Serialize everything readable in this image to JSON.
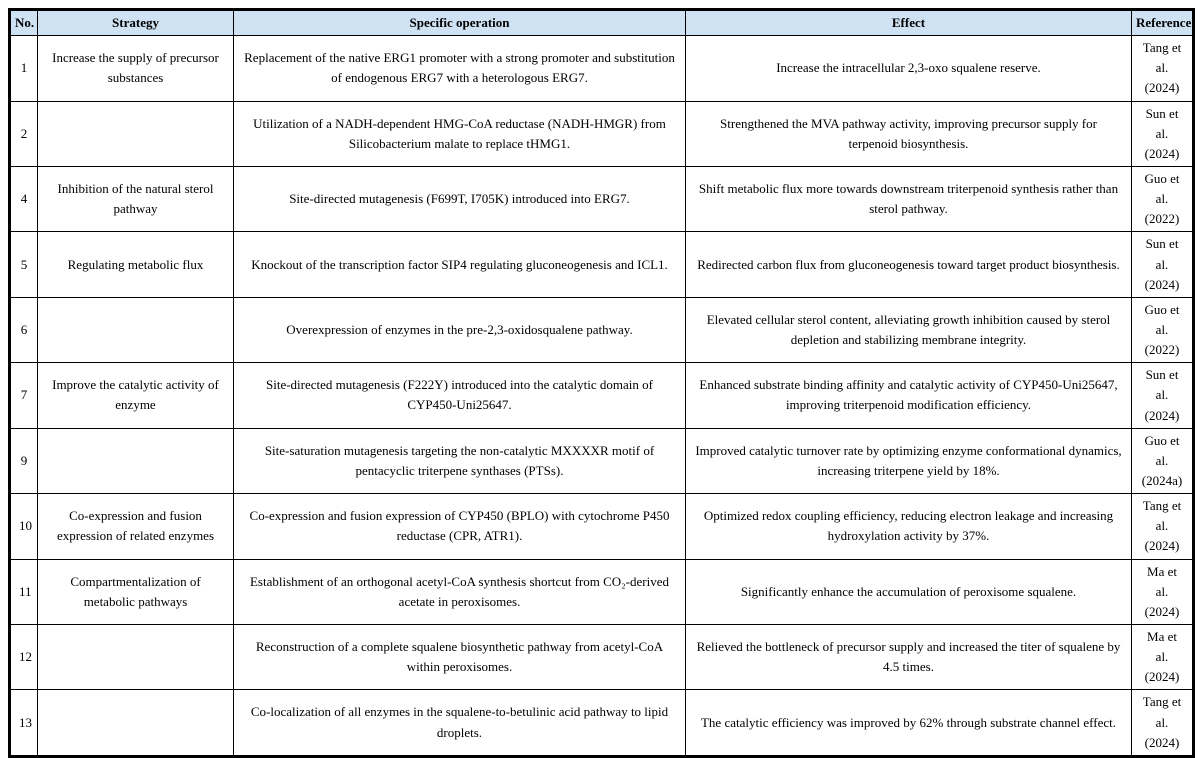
{
  "table": {
    "header_bg": "#cfe2f3",
    "border_color": "#000000",
    "columns": [
      {
        "key": "no",
        "label": "No."
      },
      {
        "key": "strategy",
        "label": "Strategy"
      },
      {
        "key": "operation",
        "label": "Specific operation"
      },
      {
        "key": "effect",
        "label": "Effect"
      },
      {
        "key": "reference",
        "label": "Reference"
      }
    ],
    "rows": [
      {
        "no": "1",
        "strategy": "Increase the supply of precursor substances",
        "operation": "Replacement of the native ERG1 promoter with a strong promoter and substitution of endogenous ERG7 with a heterologous ERG7.",
        "effect": "Increase the intracellular 2,3-oxo squalene reserve.",
        "reference": "Tang et al. (2024)"
      },
      {
        "no": "2",
        "strategy": "",
        "operation": "Utilization of a NADH-dependent HMG-CoA reductase (NADH-HMGR) from Silicobacterium malate to replace tHMG1.",
        "effect": "Strengthened the MVA pathway activity, improving precursor supply for terpenoid biosynthesis.",
        "reference": "Sun et al. (2024)"
      },
      {
        "no": "4",
        "strategy": "Inhibition of the natural sterol pathway",
        "operation": "Site-directed mutagenesis (F699T, I705K) introduced into ERG7.",
        "effect": "Shift metabolic flux more towards downstream triterpenoid synthesis rather than sterol pathway.",
        "reference": "Guo et al. (2022)"
      },
      {
        "no": "5",
        "strategy": "Regulating metabolic flux",
        "operation": "Knockout of the transcription factor SIP4 regulating gluconeogenesis and ICL1.",
        "effect": "Redirected carbon flux from gluconeogenesis toward target product biosynthesis.",
        "reference": "Sun et al. (2024)"
      },
      {
        "no": "6",
        "strategy": "",
        "operation": "Overexpression of enzymes in the pre-2,3-oxidosqualene pathway.",
        "effect": "Elevated cellular sterol content, alleviating growth inhibition caused by sterol depletion and stabilizing membrane integrity.",
        "reference": "Guo et al. (2022)"
      },
      {
        "no": "7",
        "strategy": "Improve the catalytic activity of enzyme",
        "operation": "Site-directed mutagenesis (F222Y) introduced into the catalytic domain of CYP450-Uni25647.",
        "effect": "Enhanced substrate binding affinity and catalytic activity of CYP450-Uni25647, improving triterpenoid modification efficiency.",
        "reference": "Sun et al. (2024)"
      },
      {
        "no": "9",
        "strategy": "",
        "operation": "Site-saturation mutagenesis targeting the non-catalytic MXXXXR motif of pentacyclic triterpene synthases (PTSs).",
        "effect": "Improved catalytic turnover rate by optimizing enzyme conformational dynamics, increasing triterpene yield by 18%.",
        "reference": "Guo et al. (2024a)"
      },
      {
        "no": "10",
        "strategy": "Co-expression and fusion expression of related enzymes",
        "operation": "Co-expression and fusion expression of CYP450 (BPLO) with cytochrome P450 reductase (CPR, ATR1).",
        "effect": "Optimized redox coupling efficiency, reducing electron leakage and increasing hydroxylation activity by 37%.",
        "reference": "Tang et al. (2024)"
      },
      {
        "no": "11",
        "strategy": "Compartmentalization of metabolic pathways",
        "operation": "Establishment of an orthogonal acetyl-CoA synthesis shortcut from CO₂-derived acetate in peroxisomes.",
        "effect": "Significantly enhance the accumulation of peroxisome squalene.",
        "reference": "Ma et al. (2024)"
      },
      {
        "no": "12",
        "strategy": "",
        "operation": "Reconstruction of a complete squalene biosynthetic pathway from acetyl-CoA within peroxisomes.",
        "effect": "Relieved the bottleneck of precursor supply and increased the titer of squalene by 4.5 times.",
        "reference": "Ma et al. (2024)"
      },
      {
        "no": "13",
        "strategy": "",
        "operation": "Co-localization of all enzymes in the squalene-to-betulinic acid pathway to lipid droplets.",
        "effect": "The catalytic efficiency was improved by 62% through substrate channel effect.",
        "reference": "Tang et al. (2024)"
      }
    ]
  }
}
